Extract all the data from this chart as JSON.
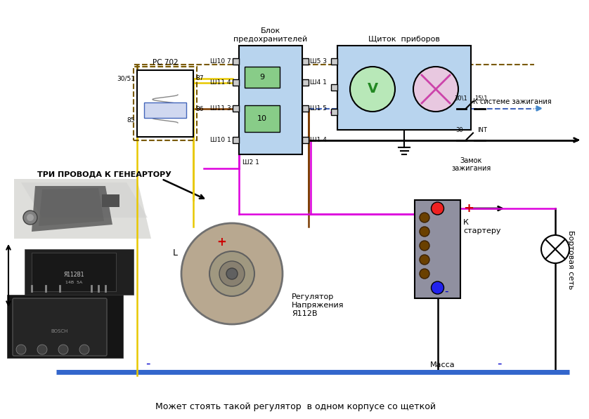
{
  "bg_color": "#ffffff",
  "fig_width": 8.38,
  "fig_height": 5.97,
  "texts": {
    "blok": "Блок\nпредохранителей",
    "schitok": "Щиток  приборов",
    "rc702": "РС 702",
    "tri_provoda": "ТРИ ПРОВОДА К ГЕНЕАРТОРУ",
    "regulator": "Регулятор\nНапряжения\nЯ112В",
    "zamok": "Замок\nзажигания",
    "k_sisteme": "К системе зажигания",
    "k_starteru": "К\nстартеру",
    "bortovaya": "Бортовая сеть",
    "massa": "Масса",
    "mozhet": "Может стоять такой регулятор  в одном корпусе со щеткой",
    "sh107": "Ш10 7",
    "sh114": "Ш11 4",
    "sh113": "Ш11 3",
    "sh101": "Ш10 1",
    "sh53": "Ш5 3",
    "sh41": "Ш4 1",
    "sh15": "Ш1 5",
    "sh14": "Ш1 4",
    "sh21": "Ш2 1",
    "num9": "9",
    "num10": "10",
    "n30_51": "30/51",
    "n85": "85",
    "n86": "86",
    "n87": "87",
    "n30": "30",
    "n301": "30\\1",
    "n151": "15\\1",
    "nINT": "INT",
    "L_label": "L",
    "plus": "+",
    "minus": "-"
  },
  "colors": {
    "white": "#ffffff",
    "black": "#000000",
    "blue": "#0000cc",
    "blue_mid": "#4466bb",
    "brown": "#7a3a00",
    "yellow": "#e8c800",
    "magenta": "#dd00dd",
    "red": "#cc0000",
    "green_light": "#88cc88",
    "gray": "#888888",
    "gray_light": "#cccccc",
    "gray_box": "#9090a0",
    "fuse_blue": "#b8d4ee",
    "dashed_brown": "#7a5a00"
  }
}
